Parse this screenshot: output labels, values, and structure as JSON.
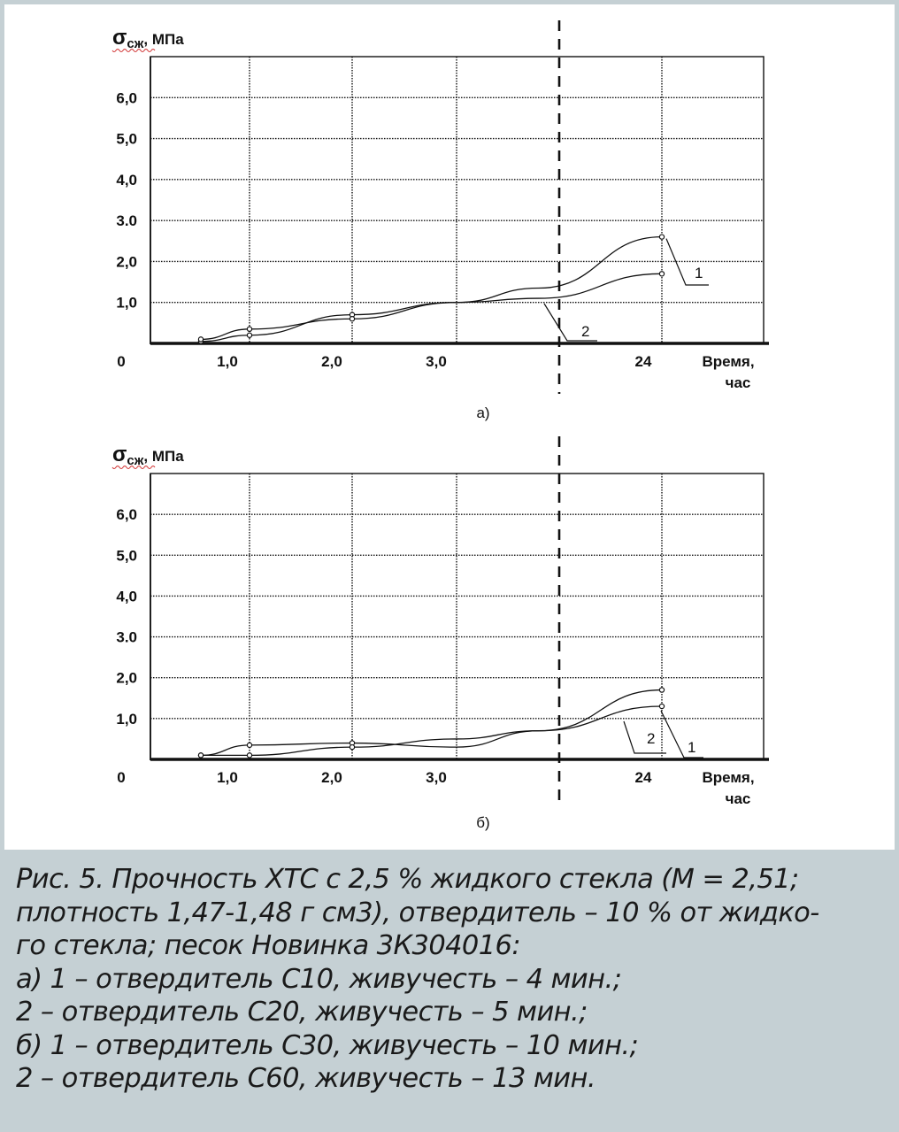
{
  "colors": {
    "background": "#c5d0d4",
    "panel": "#ffffff",
    "ink": "#111111"
  },
  "chart_data": [
    {
      "type": "line",
      "panel_label": "а)",
      "ylabel_main": "σ",
      "ylabel_sub": "сж",
      "ylabel_unit": ", МПа",
      "xlabel_line1": "Время,",
      "xlabel_line2": "час",
      "origin_label": "0",
      "ylim": [
        0,
        7.0
      ],
      "y_ticks": [
        1.0,
        2.0,
        3.0,
        4.0,
        5.0,
        6.0
      ],
      "y_tick_labels": [
        "1,0",
        "2,0",
        "3.0",
        "4,0",
        "5,0",
        "6,0"
      ],
      "x_tick_labels": [
        "1,0",
        "2,0",
        "3,0",
        "24"
      ],
      "grid": true,
      "axis_break": "dashed vertical line between 3,0 and 24",
      "series": [
        {
          "name": "1",
          "points": [
            [
              0.5,
              0.05
            ],
            [
              1.0,
              0.2
            ],
            [
              2.0,
              0.7
            ],
            [
              3.0,
              1.0
            ],
            [
              3.8,
              1.35
            ],
            [
              24,
              2.6
            ]
          ]
        },
        {
          "name": "2",
          "points": [
            [
              0.5,
              0.1
            ],
            [
              1.0,
              0.35
            ],
            [
              2.0,
              0.6
            ],
            [
              3.0,
              1.0
            ],
            [
              3.8,
              1.1
            ],
            [
              24,
              1.7
            ]
          ]
        }
      ]
    },
    {
      "type": "line",
      "panel_label": "б)",
      "ylabel_main": "σ",
      "ylabel_sub": "сж",
      "ylabel_unit": ", МПа",
      "xlabel_line1": "Время,",
      "xlabel_line2": "час",
      "origin_label": "0",
      "ylim": [
        0,
        7.0
      ],
      "y_ticks": [
        1.0,
        2.0,
        3.0,
        4.0,
        5.0,
        6.0
      ],
      "y_tick_labels": [
        "1,0",
        "2,0",
        "3.0",
        "4,0",
        "5,0",
        "6,0"
      ],
      "x_tick_labels": [
        "1,0",
        "2,0",
        "3,0",
        "24"
      ],
      "grid": true,
      "axis_break": "dashed vertical line between 3,0 and 24",
      "series": [
        {
          "name": "1",
          "points": [
            [
              0.5,
              0.1
            ],
            [
              1.0,
              0.35
            ],
            [
              2.0,
              0.4
            ],
            [
              3.0,
              0.3
            ],
            [
              3.8,
              0.7
            ],
            [
              24,
              1.3
            ]
          ]
        },
        {
          "name": "2",
          "points": [
            [
              0.5,
              0.1
            ],
            [
              1.0,
              0.1
            ],
            [
              2.0,
              0.3
            ],
            [
              3.0,
              0.5
            ],
            [
              3.8,
              0.7
            ],
            [
              24,
              1.7
            ]
          ]
        }
      ]
    }
  ],
  "caption": {
    "lines": [
      "Рис. 5. Прочность ХТС с 2,5 % жидкого стекла (М = 2,51;",
      "плотность 1,47-1,48 г см3), отвердитель – 10 % от жидко-",
      "го стекла; песок Новинка 3К304016:",
      "а) 1 – отвердитель С10, живучесть – 4 мин.;",
      "2 – отвердитель С20, живучесть – 5 мин.;",
      "б) 1 – отвердитель С30, живучесть – 10 мин.;",
      "2 – отвердитель С60, живучесть – 13 мин."
    ]
  }
}
